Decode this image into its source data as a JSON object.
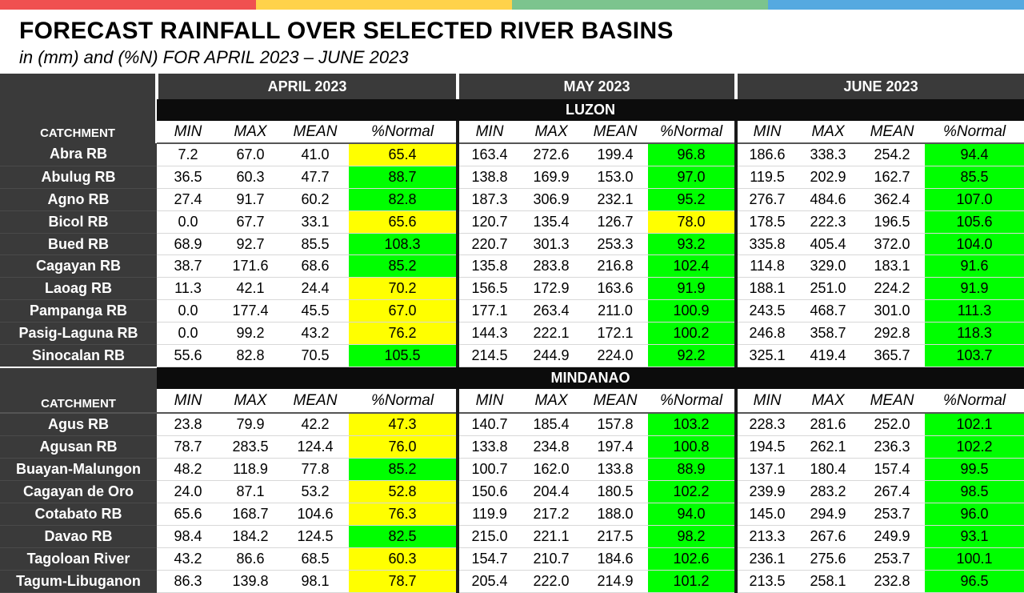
{
  "top_bar_colors": [
    "#f05050",
    "#ffd24a",
    "#7cc48e",
    "#55a9e0"
  ],
  "title": "FORECAST RAINFALL OVER SELECTED RIVER BASINS",
  "subtitle": "in (mm) and (%N) FOR APRIL 2023 – JUNE 2023",
  "months": [
    "APRIL 2023",
    "MAY 2023",
    "JUNE 2023"
  ],
  "column_headers": {
    "catchment": "CATCHMENT",
    "cols": [
      "MIN",
      "MAX",
      "MEAN",
      "%Normal",
      "MIN",
      "MAX",
      "MEAN",
      "%Normal",
      "MIN",
      "MAX",
      "MEAN",
      "%Normal"
    ]
  },
  "legend_colors": {
    "near_normal_green": "#00ff00",
    "below_normal_yellow": "#ffff00"
  },
  "sections": [
    {
      "region": "LUZON",
      "rows": [
        {
          "name": "Abra RB",
          "values": [
            "7.2",
            "67.0",
            "41.0",
            "65.4",
            "163.4",
            "272.6",
            "199.4",
            "96.8",
            "186.6",
            "338.3",
            "254.2",
            "94.4"
          ],
          "flags": [
            "y",
            "g",
            "g"
          ]
        },
        {
          "name": "Abulug RB",
          "values": [
            "36.5",
            "60.3",
            "47.7",
            "88.7",
            "138.8",
            "169.9",
            "153.0",
            "97.0",
            "119.5",
            "202.9",
            "162.7",
            "85.5"
          ],
          "flags": [
            "g",
            "g",
            "g"
          ]
        },
        {
          "name": "Agno RB",
          "values": [
            "27.4",
            "91.7",
            "60.2",
            "82.8",
            "187.3",
            "306.9",
            "232.1",
            "95.2",
            "276.7",
            "484.6",
            "362.4",
            "107.0"
          ],
          "flags": [
            "g",
            "g",
            "g"
          ]
        },
        {
          "name": "Bicol RB",
          "values": [
            "0.0",
            "67.7",
            "33.1",
            "65.6",
            "120.7",
            "135.4",
            "126.7",
            "78.0",
            "178.5",
            "222.3",
            "196.5",
            "105.6"
          ],
          "flags": [
            "y",
            "y",
            "g"
          ]
        },
        {
          "name": "Bued RB",
          "values": [
            "68.9",
            "92.7",
            "85.5",
            "108.3",
            "220.7",
            "301.3",
            "253.3",
            "93.2",
            "335.8",
            "405.4",
            "372.0",
            "104.0"
          ],
          "flags": [
            "g",
            "g",
            "g"
          ]
        },
        {
          "name": "Cagayan RB",
          "values": [
            "38.7",
            "171.6",
            "68.6",
            "85.2",
            "135.8",
            "283.8",
            "216.8",
            "102.4",
            "114.8",
            "329.0",
            "183.1",
            "91.6"
          ],
          "flags": [
            "g",
            "g",
            "g"
          ]
        },
        {
          "name": "Laoag RB",
          "values": [
            "11.3",
            "42.1",
            "24.4",
            "70.2",
            "156.5",
            "172.9",
            "163.6",
            "91.9",
            "188.1",
            "251.0",
            "224.2",
            "91.9"
          ],
          "flags": [
            "y",
            "g",
            "g"
          ]
        },
        {
          "name": "Pampanga RB",
          "values": [
            "0.0",
            "177.4",
            "45.5",
            "67.0",
            "177.1",
            "263.4",
            "211.0",
            "100.9",
            "243.5",
            "468.7",
            "301.0",
            "111.3"
          ],
          "flags": [
            "y",
            "g",
            "g"
          ]
        },
        {
          "name": "Pasig-Laguna RB",
          "values": [
            "0.0",
            "99.2",
            "43.2",
            "76.2",
            "144.3",
            "222.1",
            "172.1",
            "100.2",
            "246.8",
            "358.7",
            "292.8",
            "118.3"
          ],
          "flags": [
            "y",
            "g",
            "g"
          ]
        },
        {
          "name": "Sinocalan RB",
          "values": [
            "55.6",
            "82.8",
            "70.5",
            "105.5",
            "214.5",
            "244.9",
            "224.0",
            "92.2",
            "325.1",
            "419.4",
            "365.7",
            "103.7"
          ],
          "flags": [
            "g",
            "g",
            "g"
          ]
        }
      ]
    },
    {
      "region": "MINDANAO",
      "rows": [
        {
          "name": "Agus RB",
          "values": [
            "23.8",
            "79.9",
            "42.2",
            "47.3",
            "140.7",
            "185.4",
            "157.8",
            "103.2",
            "228.3",
            "281.6",
            "252.0",
            "102.1"
          ],
          "flags": [
            "y",
            "g",
            "g"
          ]
        },
        {
          "name": "Agusan RB",
          "values": [
            "78.7",
            "283.5",
            "124.4",
            "76.0",
            "133.8",
            "234.8",
            "197.4",
            "100.8",
            "194.5",
            "262.1",
            "236.3",
            "102.2"
          ],
          "flags": [
            "y",
            "g",
            "g"
          ]
        },
        {
          "name": "Buayan-Malungon",
          "values": [
            "48.2",
            "118.9",
            "77.8",
            "85.2",
            "100.7",
            "162.0",
            "133.8",
            "88.9",
            "137.1",
            "180.4",
            "157.4",
            "99.5"
          ],
          "flags": [
            "g",
            "g",
            "g"
          ]
        },
        {
          "name": "Cagayan de Oro",
          "values": [
            "24.0",
            "87.1",
            "53.2",
            "52.8",
            "150.6",
            "204.4",
            "180.5",
            "102.2",
            "239.9",
            "283.2",
            "267.4",
            "98.5"
          ],
          "flags": [
            "y",
            "g",
            "g"
          ]
        },
        {
          "name": "Cotabato RB",
          "values": [
            "65.6",
            "168.7",
            "104.6",
            "76.3",
            "119.9",
            "217.2",
            "188.0",
            "94.0",
            "145.0",
            "294.9",
            "253.7",
            "96.0"
          ],
          "flags": [
            "y",
            "g",
            "g"
          ]
        },
        {
          "name": "Davao RB",
          "values": [
            "98.4",
            "184.2",
            "124.5",
            "82.5",
            "215.0",
            "221.1",
            "217.5",
            "98.2",
            "213.3",
            "267.6",
            "249.9",
            "93.1"
          ],
          "flags": [
            "g",
            "g",
            "g"
          ]
        },
        {
          "name": "Tagoloan River",
          "values": [
            "43.2",
            "86.6",
            "68.5",
            "60.3",
            "154.7",
            "210.7",
            "184.6",
            "102.6",
            "236.1",
            "275.6",
            "253.7",
            "100.1"
          ],
          "flags": [
            "y",
            "g",
            "g"
          ]
        },
        {
          "name": "Tagum-Libuganon",
          "values": [
            "86.3",
            "139.8",
            "98.1",
            "78.7",
            "205.4",
            "222.0",
            "214.9",
            "101.2",
            "213.5",
            "258.1",
            "232.8",
            "96.5"
          ],
          "flags": [
            "y",
            "g",
            "g"
          ]
        }
      ]
    }
  ]
}
